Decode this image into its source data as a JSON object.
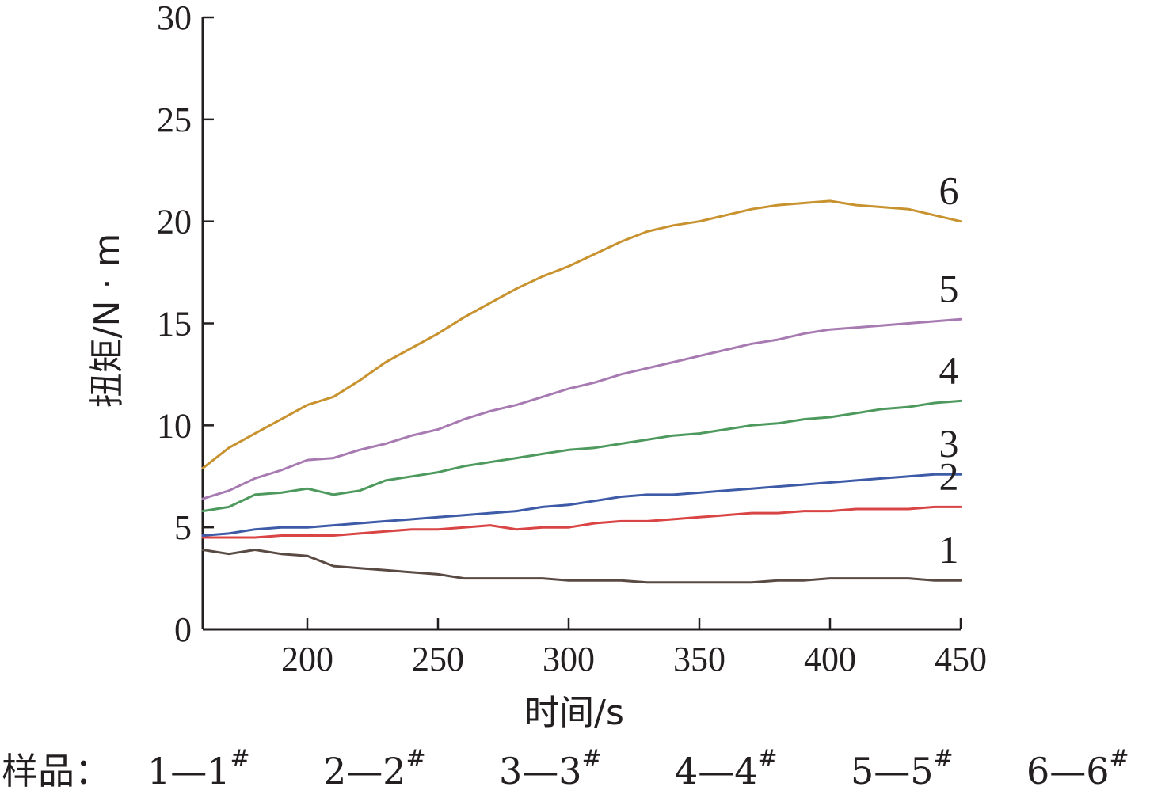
{
  "chart_data": {
    "type": "line",
    "xlabel": "时间/s",
    "ylabel": "扭矩/N · m",
    "xlim": [
      160,
      450
    ],
    "ylim": [
      0,
      30
    ],
    "x_ticks": [
      "200",
      "250",
      "300",
      "350",
      "400",
      "450"
    ],
    "y_ticks": [
      "0",
      "5",
      "10",
      "15",
      "20",
      "25",
      "30"
    ],
    "grid": false,
    "x": [
      160,
      170,
      180,
      190,
      200,
      210,
      220,
      230,
      240,
      250,
      260,
      270,
      280,
      290,
      300,
      310,
      320,
      330,
      340,
      350,
      360,
      370,
      380,
      390,
      400,
      410,
      420,
      430,
      440,
      450
    ],
    "series": [
      {
        "name": "1",
        "color": "#5a4a44",
        "values": [
          3.9,
          3.7,
          3.9,
          3.7,
          3.6,
          3.1,
          3.0,
          2.9,
          2.8,
          2.7,
          2.5,
          2.5,
          2.5,
          2.5,
          2.4,
          2.4,
          2.4,
          2.3,
          2.3,
          2.3,
          2.3,
          2.3,
          2.4,
          2.4,
          2.5,
          2.5,
          2.5,
          2.5,
          2.4,
          2.4
        ]
      },
      {
        "name": "2",
        "color": "#d94545",
        "values": [
          4.5,
          4.5,
          4.5,
          4.6,
          4.6,
          4.6,
          4.7,
          4.8,
          4.9,
          4.9,
          5.0,
          5.1,
          4.9,
          5.0,
          5.0,
          5.2,
          5.3,
          5.3,
          5.4,
          5.5,
          5.6,
          5.7,
          5.7,
          5.8,
          5.8,
          5.9,
          5.9,
          5.9,
          6.0,
          6.0
        ]
      },
      {
        "name": "3",
        "color": "#3e5ba8",
        "values": [
          4.6,
          4.7,
          4.9,
          5.0,
          5.0,
          5.1,
          5.2,
          5.3,
          5.4,
          5.5,
          5.6,
          5.7,
          5.8,
          6.0,
          6.1,
          6.3,
          6.5,
          6.6,
          6.6,
          6.7,
          6.8,
          6.9,
          7.0,
          7.1,
          7.2,
          7.3,
          7.4,
          7.5,
          7.6,
          7.6
        ]
      },
      {
        "name": "4",
        "color": "#4e9a5e",
        "values": [
          5.8,
          6.0,
          6.6,
          6.7,
          6.9,
          6.6,
          6.8,
          7.3,
          7.5,
          7.7,
          8.0,
          8.2,
          8.4,
          8.6,
          8.8,
          8.9,
          9.1,
          9.3,
          9.5,
          9.6,
          9.8,
          10.0,
          10.1,
          10.3,
          10.4,
          10.6,
          10.8,
          10.9,
          11.1,
          11.2
        ]
      },
      {
        "name": "5",
        "color": "#a77ab2",
        "values": [
          6.4,
          6.8,
          7.4,
          7.8,
          8.3,
          8.4,
          8.8,
          9.1,
          9.5,
          9.8,
          10.3,
          10.7,
          11.0,
          11.4,
          11.8,
          12.1,
          12.5,
          12.8,
          13.1,
          13.4,
          13.7,
          14.0,
          14.2,
          14.5,
          14.7,
          14.8,
          14.9,
          15.0,
          15.1,
          15.2
        ]
      },
      {
        "name": "6",
        "color": "#c8922f",
        "values": [
          7.9,
          8.9,
          9.6,
          10.3,
          11.0,
          11.4,
          12.2,
          13.1,
          13.8,
          14.5,
          15.3,
          16.0,
          16.7,
          17.3,
          17.8,
          18.4,
          19.0,
          19.5,
          19.8,
          20.0,
          20.3,
          20.6,
          20.8,
          20.9,
          21.0,
          20.8,
          20.7,
          20.6,
          20.3,
          20.0
        ]
      }
    ]
  },
  "caption": {
    "prefix": "样品：",
    "items": [
      "1—1#",
      "2—2#",
      "3—3#",
      "4—4#",
      "5—5#",
      "6—6#"
    ]
  }
}
